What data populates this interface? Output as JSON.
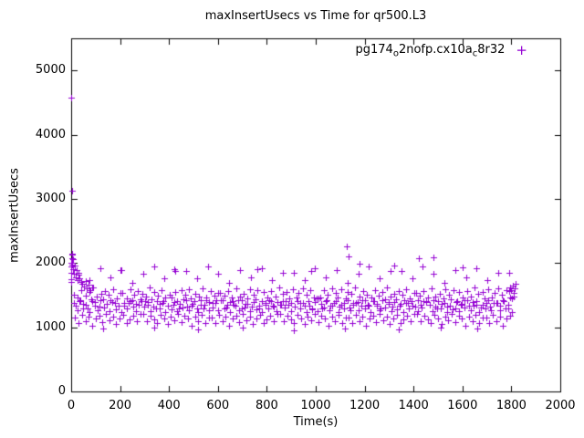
{
  "chart_data": {
    "type": "scatter",
    "title": "maxInsertUsecs vs Time for qr500.L3",
    "xlabel": "Time(s)",
    "ylabel": "maxInsertUsecs",
    "xlim": [
      0,
      2000
    ],
    "ylim": [
      0,
      5500
    ],
    "xticks": [
      0,
      200,
      400,
      600,
      800,
      1000,
      1200,
      1400,
      1600,
      1800,
      2000
    ],
    "yticks": [
      0,
      1000,
      2000,
      3000,
      4000,
      5000
    ],
    "grid": false,
    "legend_position": "top-right-inside",
    "series": [
      {
        "name": "pg174_o2nofp.cx10a_c8r32",
        "label_segments": [
          {
            "t": "pg174"
          },
          {
            "t": "o",
            "sub": true
          },
          {
            "t": "2nofp.cx10a"
          },
          {
            "t": "c",
            "sub": true
          },
          {
            "t": "8r32"
          }
        ],
        "color": "#9400d3",
        "marker": "plus",
        "bands": [
          {
            "x_start": 10,
            "x_step": 8,
            "y": [
              1510,
              1330,
              1465,
              1405,
              1580,
              1370,
              1490,
              1290,
              1545,
              1430,
              1620,
              1390,
              1475,
              1315,
              1525,
              1440,
              1560,
              1360,
              1500,
              1420,
              1595,
              1380,
              1455,
              1340,
              1535,
              1535,
              1340,
              1455,
              1380,
              1595,
              1420,
              1500,
              1360,
              1560,
              1440,
              1525,
              1315,
              1475,
              1390,
              1620,
              1430,
              1545,
              1290,
              1490,
              1370,
              1580,
              1405,
              1465,
              1330,
              1510,
              1470,
              1345,
              1555,
              1410,
              1300,
              1575,
              1435,
              1505,
              1325,
              1590,
              1450,
              1365,
              1520,
              1295,
              1480,
              1415,
              1610,
              1350,
              1460,
              1395,
              1565,
              1310,
              1495,
              1425,
              1540,
              1540,
              1425,
              1495,
              1310,
              1565,
              1395,
              1460,
              1350,
              1610,
              1415,
              1480,
              1295,
              1520,
              1365,
              1450,
              1590,
              1325,
              1505,
              1435,
              1575,
              1300,
              1410,
              1555,
              1345,
              1470,
              1425,
              1570,
              1335,
              1485,
              1395,
              1615,
              1355,
              1515,
              1305,
              1550,
              1445,
              1375,
              1585,
              1320,
              1470,
              1530,
              1385,
              1605,
              1340,
              1500,
              1410,
              1575,
              1300,
              1460,
              1445,
              1445,
              1460,
              1300,
              1575,
              1410,
              1500,
              1340,
              1605,
              1385,
              1530,
              1470,
              1320,
              1585,
              1375,
              1445,
              1550,
              1305,
              1515,
              1355,
              1615,
              1395,
              1485,
              1335,
              1570,
              1425,
              1510,
              1330,
              1465,
              1405,
              1580,
              1370,
              1490,
              1290,
              1545,
              1430,
              1620,
              1390,
              1475,
              1315,
              1525,
              1440,
              1560,
              1360,
              1500,
              1420,
              1595,
              1380,
              1455,
              1340,
              1535,
              1540,
              1425,
              1495,
              1310,
              1565,
              1395,
              1460,
              1350,
              1610,
              1415,
              1480,
              1295,
              1520,
              1365,
              1450,
              1590,
              1325,
              1505,
              1435,
              1575,
              1300,
              1410,
              1555,
              1345,
              1470,
              1425,
              1570,
              1335,
              1485,
              1395,
              1615,
              1355,
              1515,
              1305,
              1550,
              1445,
              1375,
              1585,
              1320,
              1470,
              1530,
              1385,
              1605,
              1340,
              1500,
              1410,
              1575,
              1300,
              1460,
              1445,
              1480
            ]
          },
          {
            "x_start": 13,
            "x_step": 12,
            "y": [
              1380,
              1260,
              1415,
              1300,
              1355,
              1240,
              1400,
              1330,
              1270,
              1420,
              1310,
              1365,
              1245,
              1390,
              1285,
              1340,
              1230,
              1375,
              1295,
              1410,
              1320,
              1255,
              1345,
              1405,
              1405,
              1345,
              1255,
              1320,
              1410,
              1295,
              1375,
              1230,
              1340,
              1285,
              1390,
              1245,
              1365,
              1310,
              1420,
              1270,
              1330,
              1400,
              1240,
              1355,
              1300,
              1415,
              1260,
              1380,
              1380,
              1260,
              1415,
              1300,
              1355,
              1240,
              1400,
              1330,
              1270,
              1420,
              1310,
              1365,
              1245,
              1390,
              1285,
              1340,
              1230,
              1375,
              1295,
              1410,
              1320,
              1255,
              1345,
              1405,
              1405,
              1345,
              1255,
              1320,
              1410,
              1295,
              1375,
              1230,
              1340,
              1285,
              1390,
              1245,
              1365,
              1310,
              1420,
              1270,
              1330,
              1400,
              1240,
              1355,
              1300,
              1415,
              1260,
              1380,
              1380,
              1260,
              1415,
              1300,
              1355,
              1240,
              1400,
              1330,
              1270,
              1420,
              1310,
              1365,
              1245,
              1390,
              1285,
              1340,
              1230,
              1375,
              1295,
              1410,
              1320,
              1255,
              1345,
              1405,
              1405,
              1345,
              1255,
              1320,
              1410,
              1295,
              1375,
              1230,
              1340,
              1285,
              1390,
              1245,
              1365,
              1310,
              1420,
              1270,
              1330,
              1400,
              1240,
              1355,
              1300,
              1415,
              1260,
              1380,
              1380,
              1260,
              1415,
              1300,
              1355,
              1240
            ]
          },
          {
            "x_start": 16,
            "x_step": 14,
            "y": [
              1150,
              1060,
              1200,
              1100,
              1170,
              1030,
              1130,
              1185,
              1080,
              1215,
              1105,
              1160,
              1045,
              1140,
              1190,
              1070,
              1120,
              1175,
              1090,
              1205,
              1205,
              1090,
              1175,
              1120,
              1070,
              1190,
              1140,
              1045,
              1160,
              1105,
              1215,
              1080,
              1185,
              1130,
              1030,
              1170,
              1100,
              1200,
              1060,
              1150,
              1150,
              1060,
              1200,
              1100,
              1170,
              1030,
              1130,
              1185,
              1080,
              1215,
              1105,
              1160,
              1045,
              1140,
              1190,
              1070,
              1120,
              1175,
              1090,
              1205,
              1205,
              1090,
              1175,
              1120,
              1070,
              1190,
              1140,
              1045,
              1160,
              1105,
              1215,
              1080,
              1185,
              1130,
              1030,
              1170,
              1100,
              1200,
              1060,
              1150,
              1150,
              1060,
              1200,
              1100,
              1170,
              1030,
              1130,
              1185,
              1080,
              1215,
              1105,
              1160,
              1045,
              1140,
              1190,
              1070,
              1120,
              1175,
              1090,
              1205,
              1205,
              1090,
              1175,
              1120,
              1070,
              1190,
              1140,
              1045,
              1160,
              1105,
              1215,
              1080,
              1185,
              1130,
              1030,
              1170,
              1100,
              1200,
              1060,
              1150,
              1150,
              1060,
              1200,
              1100,
              1170,
              1030,
              1130,
              1185
            ]
          },
          {
            "x_start": 30,
            "x_step": 44,
            "y": [
              1850,
              1730,
              1920,
              1780,
              1890,
              1690,
              1830,
              1950,
              1760,
              1870,
              1870,
              1760,
              1950,
              1830,
              1690,
              1890,
              1780,
              1920,
              1730,
              1850,
              1850,
              1730,
              1920,
              1780,
              1890,
              1690,
              1830,
              1950,
              1760,
              1870,
              1870,
              1760,
              1950,
              1830,
              1690,
              1890,
              1780,
              1920,
              1730,
              1850,
              1850
            ]
          }
        ],
        "points": [
          [
            0,
            1750
          ],
          [
            0,
            1850
          ],
          [
            0,
            2000
          ],
          [
            1,
            1950
          ],
          [
            1,
            1700
          ],
          [
            1,
            4580
          ],
          [
            2,
            3130
          ],
          [
            2,
            2130
          ],
          [
            2,
            2080
          ],
          [
            3,
            2150
          ],
          [
            4,
            1980
          ],
          [
            6,
            2060
          ],
          [
            8,
            1900
          ],
          [
            12,
            1840
          ],
          [
            15,
            1960
          ],
          [
            18,
            1780
          ],
          [
            22,
            1890
          ],
          [
            26,
            1730
          ],
          [
            30,
            1820
          ],
          [
            35,
            1760
          ],
          [
            40,
            1700
          ],
          [
            46,
            1680
          ],
          [
            52,
            1640
          ],
          [
            58,
            1720
          ],
          [
            64,
            1600
          ],
          [
            70,
            1660
          ],
          [
            78,
            1580
          ],
          [
            86,
            1620
          ],
          [
            130,
            980
          ],
          [
            200,
            1890
          ],
          [
            340,
            1000
          ],
          [
            420,
            1910
          ],
          [
            520,
            965
          ],
          [
            700,
            990
          ],
          [
            760,
            1900
          ],
          [
            910,
            955
          ],
          [
            980,
            1880
          ],
          [
            1120,
            985
          ],
          [
            1128,
            2260
          ],
          [
            1135,
            2100
          ],
          [
            1178,
            1990
          ],
          [
            1320,
            1960
          ],
          [
            1340,
            960
          ],
          [
            1420,
            2070
          ],
          [
            1482,
            2090
          ],
          [
            1510,
            1000
          ],
          [
            1600,
            1930
          ],
          [
            1660,
            975
          ],
          [
            1790,
            1560
          ],
          [
            1795,
            1620
          ],
          [
            1800,
            1580
          ],
          [
            1805,
            1650
          ],
          [
            1810,
            1540
          ],
          [
            1815,
            1600
          ],
          [
            1818,
            1680
          ]
        ]
      }
    ]
  }
}
